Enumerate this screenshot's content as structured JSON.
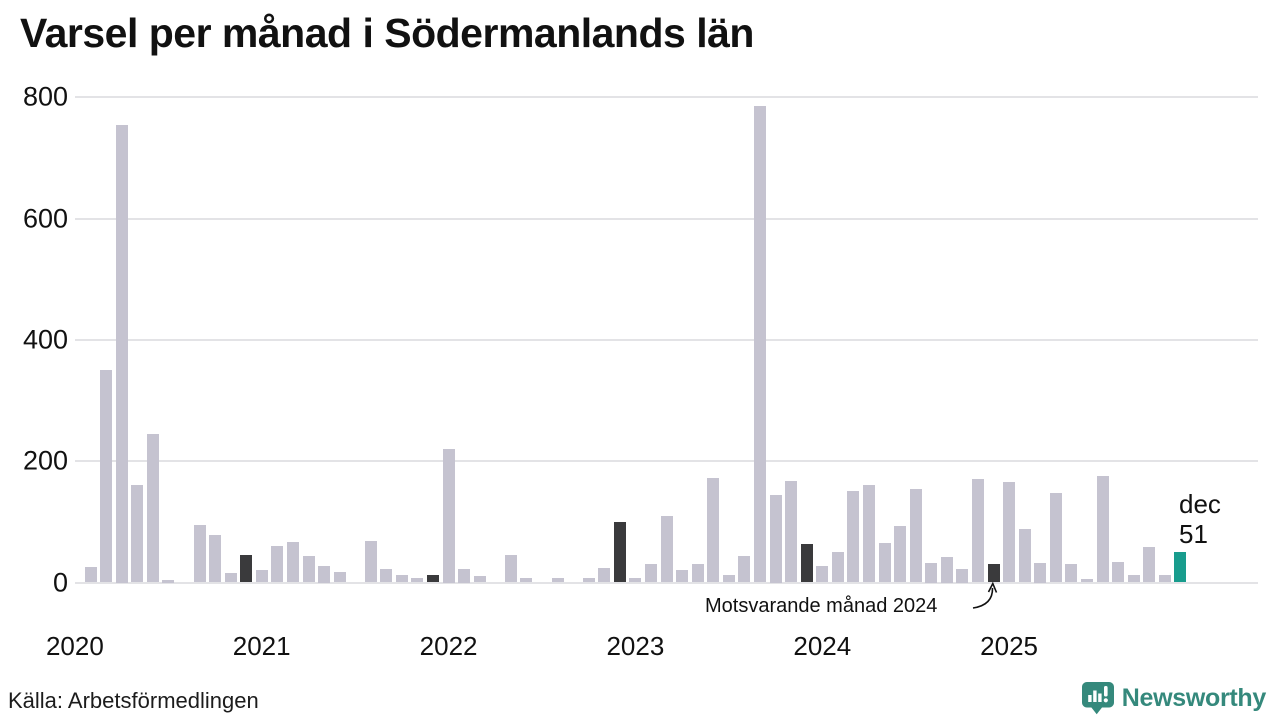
{
  "title": "Varsel per månad i Södermanlands län",
  "source": "Källa: Arbetsförmedlingen",
  "annotation": {
    "text": "Motsvarande månad 2024"
  },
  "current_label": {
    "month": "dec",
    "value": "51"
  },
  "brand": {
    "name": "Newsworthy"
  },
  "colors": {
    "bar": "#c5c3d0",
    "bar_dark": "#3a3a3c",
    "bar_current": "#189c8d",
    "gridline": "#e3e3e6",
    "text": "#111111",
    "brand_teal": "#35897c"
  },
  "chart_data": {
    "type": "bar",
    "title": "Varsel per månad i Södermanlands län",
    "xlabel": "",
    "ylabel": "",
    "start_month": "2020-01",
    "end_month": "2025-12",
    "values": [
      0,
      25,
      350,
      755,
      160,
      245,
      5,
      0,
      95,
      78,
      15,
      45,
      20,
      60,
      67,
      43,
      28,
      17,
      0,
      68,
      22,
      13,
      8,
      13,
      220,
      23,
      10,
      0,
      46,
      7,
      0,
      8,
      0,
      8,
      24,
      100,
      7,
      30,
      110,
      20,
      30,
      172,
      12,
      43,
      785,
      145,
      168,
      63,
      27,
      50,
      151,
      160,
      65,
      93,
      154,
      33,
      42,
      23,
      171,
      31,
      165,
      88,
      33,
      148,
      31,
      6,
      175,
      34,
      12,
      58,
      12,
      51
    ],
    "dark_indices": [
      11,
      23,
      35,
      47,
      59
    ],
    "dark_meaning": "Motsvarande månad 2024 (december varje år)",
    "current_index": 71,
    "current_value": 51,
    "current_month_label": "dec",
    "x_tick_years": [
      "2020",
      "2021",
      "2022",
      "2023",
      "2024",
      "2025"
    ],
    "y_ticks": [
      0,
      200,
      400,
      600,
      800
    ],
    "ylim": [
      0,
      800
    ],
    "grid": true,
    "legend": "none"
  }
}
